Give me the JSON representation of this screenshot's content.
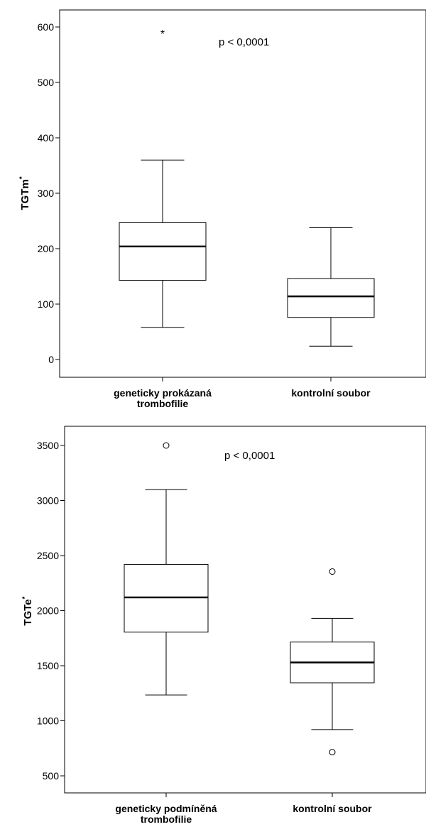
{
  "chart_data": [
    {
      "type": "boxplot",
      "ylabel": "TGTm",
      "ylabel_marker": "*",
      "annotation": "p < 0,0001",
      "ylim": [
        -30,
        640
      ],
      "yticks": [
        0,
        100,
        200,
        300,
        400,
        500,
        600
      ],
      "grid": false,
      "categories": [
        [
          "geneticky prokázaná",
          "trombofilie"
        ],
        [
          "kontrolní soubor"
        ]
      ],
      "boxes": [
        {
          "min": 58,
          "q1": 143,
          "median": 204,
          "q3": 247,
          "max": 360,
          "outliers": [
            {
              "value": 590,
              "marker": "*"
            }
          ]
        },
        {
          "min": 24,
          "q1": 76,
          "median": 114,
          "q3": 146,
          "max": 238,
          "outliers": []
        }
      ]
    },
    {
      "type": "boxplot",
      "ylabel": "TGTe",
      "ylabel_marker": "*",
      "annotation": "p < 0,0001",
      "ylim": [
        380,
        3650
      ],
      "yticks": [
        500,
        1000,
        1500,
        2000,
        2500,
        3000,
        3500
      ],
      "grid": false,
      "categories": [
        [
          "geneticky podmíněná",
          "trombofilie"
        ],
        [
          "kontrolní soubor"
        ]
      ],
      "boxes": [
        {
          "min": 1235,
          "q1": 1805,
          "median": 2120,
          "q3": 2420,
          "max": 3100,
          "outliers": [
            {
              "value": 3500,
              "marker": "o"
            }
          ]
        },
        {
          "min": 920,
          "q1": 1345,
          "median": 1530,
          "q3": 1715,
          "max": 1930,
          "outliers": [
            {
              "value": 2355,
              "marker": "o"
            },
            {
              "value": 715,
              "marker": "o"
            }
          ]
        }
      ]
    }
  ]
}
